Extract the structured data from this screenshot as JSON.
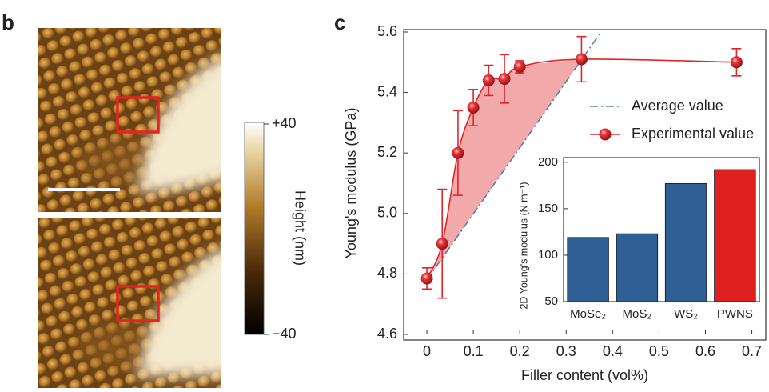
{
  "panel_labels": [
    "b",
    "c"
  ],
  "colorbar": {
    "title": "Height (nm)",
    "ticks": [
      {
        "value": 40,
        "label": "+40"
      },
      {
        "value": -40,
        "label": "−40"
      }
    ]
  },
  "chart_data": [
    {
      "type": "line",
      "x_label": "Filler content (vol%)",
      "y_label": "Young's modulus (GPa)",
      "xlim": [
        -0.05,
        0.73
      ],
      "ylim": [
        4.6,
        5.6
      ],
      "xticks": [
        0,
        0.1,
        0.2,
        0.3,
        0.4,
        0.5,
        0.6,
        0.7
      ],
      "yticks": [
        4.6,
        4.8,
        {
          "value": 5,
          "label": "5.0"
        },
        5.2,
        5.4,
        5.6
      ],
      "legend": "right",
      "series": [
        {
          "name": "Average value",
          "color": "#5b7fa6",
          "line_style": "dash-dot",
          "x": [
            0,
            0.375
          ],
          "values": [
            4.78,
            5.6
          ]
        },
        {
          "name": "Experimental value",
          "color": "#e0262b",
          "line_style": "smooth",
          "marker": "circle",
          "shade": "#ef9a9a",
          "x": [
            0,
            0.033,
            0.067,
            0.1,
            0.133,
            0.167,
            0.2,
            0.333,
            0.667
          ],
          "values": [
            4.785,
            4.9,
            5.2,
            5.35,
            5.44,
            5.445,
            5.485,
            5.51,
            5.5
          ],
          "errors": [
            0.035,
            0.18,
            0.14,
            0.06,
            0.05,
            0.08,
            0.02,
            0.075,
            0.045
          ]
        }
      ]
    },
    {
      "type": "bar",
      "y_label": "2D Young's modulus (N m⁻¹)",
      "categories": [
        "MoSe₂",
        "MoS₂",
        "WS₂",
        "PWNS"
      ],
      "values": [
        119,
        123,
        177,
        192
      ],
      "colors": [
        "#2f5f94",
        "#2f5f94",
        "#2f5f94",
        "#e0201f"
      ],
      "ylim": [
        50,
        205
      ],
      "yticks": [
        50,
        100,
        150,
        200
      ]
    }
  ]
}
